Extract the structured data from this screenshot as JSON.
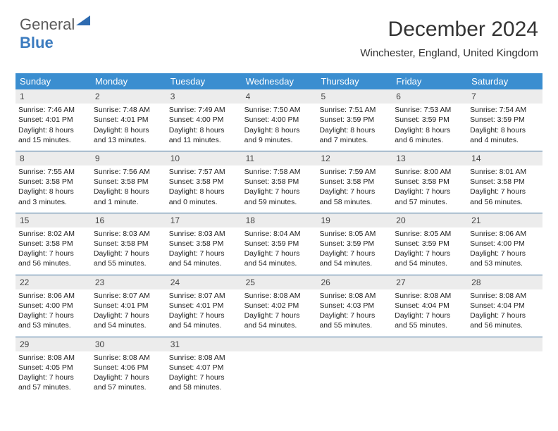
{
  "logo": {
    "word1": "General",
    "word2": "Blue"
  },
  "header": {
    "month_title": "December 2024",
    "location": "Winchester, England, United Kingdom"
  },
  "colors": {
    "header_bg": "#3b8ed0",
    "header_text": "#ffffff",
    "row_border": "#3b6f9c",
    "daynum_bg": "#ececec",
    "logo_gray": "#5a5a5a",
    "logo_blue": "#3b7bbf",
    "page_bg": "#ffffff",
    "text": "#222222"
  },
  "day_headers": [
    "Sunday",
    "Monday",
    "Tuesday",
    "Wednesday",
    "Thursday",
    "Friday",
    "Saturday"
  ],
  "weeks": [
    [
      {
        "n": "1",
        "sr": "Sunrise: 7:46 AM",
        "ss": "Sunset: 4:01 PM",
        "d1": "Daylight: 8 hours",
        "d2": "and 15 minutes."
      },
      {
        "n": "2",
        "sr": "Sunrise: 7:48 AM",
        "ss": "Sunset: 4:01 PM",
        "d1": "Daylight: 8 hours",
        "d2": "and 13 minutes."
      },
      {
        "n": "3",
        "sr": "Sunrise: 7:49 AM",
        "ss": "Sunset: 4:00 PM",
        "d1": "Daylight: 8 hours",
        "d2": "and 11 minutes."
      },
      {
        "n": "4",
        "sr": "Sunrise: 7:50 AM",
        "ss": "Sunset: 4:00 PM",
        "d1": "Daylight: 8 hours",
        "d2": "and 9 minutes."
      },
      {
        "n": "5",
        "sr": "Sunrise: 7:51 AM",
        "ss": "Sunset: 3:59 PM",
        "d1": "Daylight: 8 hours",
        "d2": "and 7 minutes."
      },
      {
        "n": "6",
        "sr": "Sunrise: 7:53 AM",
        "ss": "Sunset: 3:59 PM",
        "d1": "Daylight: 8 hours",
        "d2": "and 6 minutes."
      },
      {
        "n": "7",
        "sr": "Sunrise: 7:54 AM",
        "ss": "Sunset: 3:59 PM",
        "d1": "Daylight: 8 hours",
        "d2": "and 4 minutes."
      }
    ],
    [
      {
        "n": "8",
        "sr": "Sunrise: 7:55 AM",
        "ss": "Sunset: 3:58 PM",
        "d1": "Daylight: 8 hours",
        "d2": "and 3 minutes."
      },
      {
        "n": "9",
        "sr": "Sunrise: 7:56 AM",
        "ss": "Sunset: 3:58 PM",
        "d1": "Daylight: 8 hours",
        "d2": "and 1 minute."
      },
      {
        "n": "10",
        "sr": "Sunrise: 7:57 AM",
        "ss": "Sunset: 3:58 PM",
        "d1": "Daylight: 8 hours",
        "d2": "and 0 minutes."
      },
      {
        "n": "11",
        "sr": "Sunrise: 7:58 AM",
        "ss": "Sunset: 3:58 PM",
        "d1": "Daylight: 7 hours",
        "d2": "and 59 minutes."
      },
      {
        "n": "12",
        "sr": "Sunrise: 7:59 AM",
        "ss": "Sunset: 3:58 PM",
        "d1": "Daylight: 7 hours",
        "d2": "and 58 minutes."
      },
      {
        "n": "13",
        "sr": "Sunrise: 8:00 AM",
        "ss": "Sunset: 3:58 PM",
        "d1": "Daylight: 7 hours",
        "d2": "and 57 minutes."
      },
      {
        "n": "14",
        "sr": "Sunrise: 8:01 AM",
        "ss": "Sunset: 3:58 PM",
        "d1": "Daylight: 7 hours",
        "d2": "and 56 minutes."
      }
    ],
    [
      {
        "n": "15",
        "sr": "Sunrise: 8:02 AM",
        "ss": "Sunset: 3:58 PM",
        "d1": "Daylight: 7 hours",
        "d2": "and 56 minutes."
      },
      {
        "n": "16",
        "sr": "Sunrise: 8:03 AM",
        "ss": "Sunset: 3:58 PM",
        "d1": "Daylight: 7 hours",
        "d2": "and 55 minutes."
      },
      {
        "n": "17",
        "sr": "Sunrise: 8:03 AM",
        "ss": "Sunset: 3:58 PM",
        "d1": "Daylight: 7 hours",
        "d2": "and 54 minutes."
      },
      {
        "n": "18",
        "sr": "Sunrise: 8:04 AM",
        "ss": "Sunset: 3:59 PM",
        "d1": "Daylight: 7 hours",
        "d2": "and 54 minutes."
      },
      {
        "n": "19",
        "sr": "Sunrise: 8:05 AM",
        "ss": "Sunset: 3:59 PM",
        "d1": "Daylight: 7 hours",
        "d2": "and 54 minutes."
      },
      {
        "n": "20",
        "sr": "Sunrise: 8:05 AM",
        "ss": "Sunset: 3:59 PM",
        "d1": "Daylight: 7 hours",
        "d2": "and 54 minutes."
      },
      {
        "n": "21",
        "sr": "Sunrise: 8:06 AM",
        "ss": "Sunset: 4:00 PM",
        "d1": "Daylight: 7 hours",
        "d2": "and 53 minutes."
      }
    ],
    [
      {
        "n": "22",
        "sr": "Sunrise: 8:06 AM",
        "ss": "Sunset: 4:00 PM",
        "d1": "Daylight: 7 hours",
        "d2": "and 53 minutes."
      },
      {
        "n": "23",
        "sr": "Sunrise: 8:07 AM",
        "ss": "Sunset: 4:01 PM",
        "d1": "Daylight: 7 hours",
        "d2": "and 54 minutes."
      },
      {
        "n": "24",
        "sr": "Sunrise: 8:07 AM",
        "ss": "Sunset: 4:01 PM",
        "d1": "Daylight: 7 hours",
        "d2": "and 54 minutes."
      },
      {
        "n": "25",
        "sr": "Sunrise: 8:08 AM",
        "ss": "Sunset: 4:02 PM",
        "d1": "Daylight: 7 hours",
        "d2": "and 54 minutes."
      },
      {
        "n": "26",
        "sr": "Sunrise: 8:08 AM",
        "ss": "Sunset: 4:03 PM",
        "d1": "Daylight: 7 hours",
        "d2": "and 55 minutes."
      },
      {
        "n": "27",
        "sr": "Sunrise: 8:08 AM",
        "ss": "Sunset: 4:04 PM",
        "d1": "Daylight: 7 hours",
        "d2": "and 55 minutes."
      },
      {
        "n": "28",
        "sr": "Sunrise: 8:08 AM",
        "ss": "Sunset: 4:04 PM",
        "d1": "Daylight: 7 hours",
        "d2": "and 56 minutes."
      }
    ],
    [
      {
        "n": "29",
        "sr": "Sunrise: 8:08 AM",
        "ss": "Sunset: 4:05 PM",
        "d1": "Daylight: 7 hours",
        "d2": "and 57 minutes."
      },
      {
        "n": "30",
        "sr": "Sunrise: 8:08 AM",
        "ss": "Sunset: 4:06 PM",
        "d1": "Daylight: 7 hours",
        "d2": "and 57 minutes."
      },
      {
        "n": "31",
        "sr": "Sunrise: 8:08 AM",
        "ss": "Sunset: 4:07 PM",
        "d1": "Daylight: 7 hours",
        "d2": "and 58 minutes."
      },
      {
        "n": "",
        "sr": "",
        "ss": "",
        "d1": "",
        "d2": ""
      },
      {
        "n": "",
        "sr": "",
        "ss": "",
        "d1": "",
        "d2": ""
      },
      {
        "n": "",
        "sr": "",
        "ss": "",
        "d1": "",
        "d2": ""
      },
      {
        "n": "",
        "sr": "",
        "ss": "",
        "d1": "",
        "d2": ""
      }
    ]
  ]
}
